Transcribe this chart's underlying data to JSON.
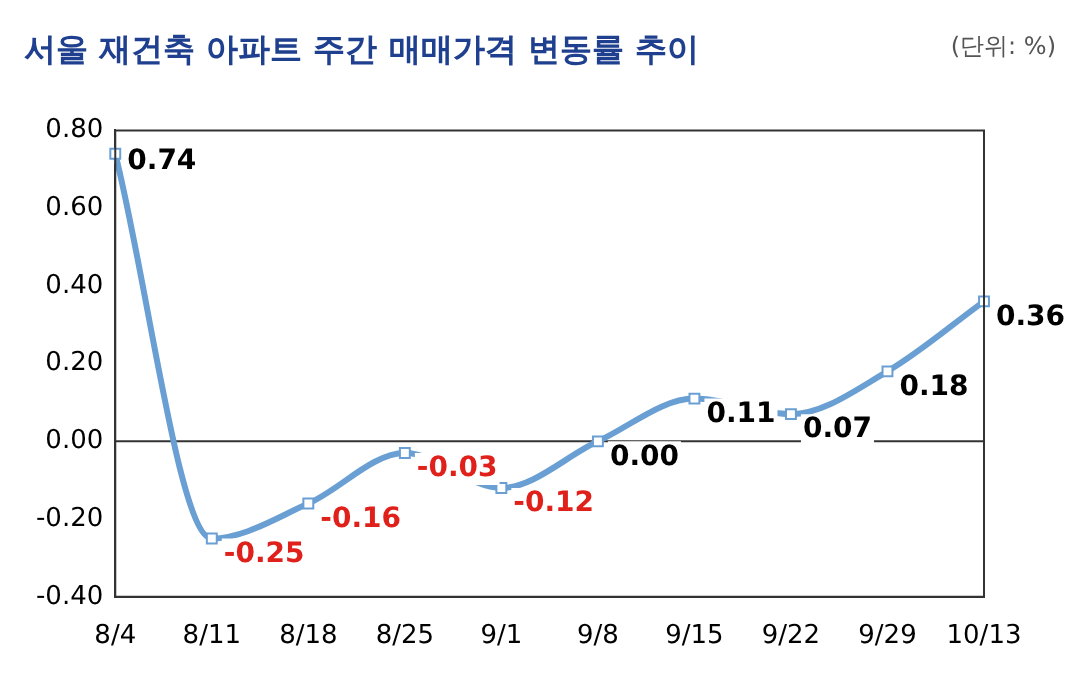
{
  "chart_data": {
    "type": "line",
    "title": "서울 재건축 아파트 주간 매매가격 변동률 추이",
    "annotations": [
      "(단위: %)"
    ],
    "categories": [
      "8/4",
      "8/11",
      "8/18",
      "8/25",
      "9/1",
      "9/8",
      "9/15",
      "9/22",
      "9/29",
      "10/13"
    ],
    "series": [
      {
        "color": "#6a9fd4",
        "values": [
          0.74,
          -0.25,
          -0.16,
          -0.03,
          -0.12,
          0.0,
          0.11,
          0.07,
          0.18,
          0.36
        ],
        "value_labels": [
          "0.74",
          "-0.25",
          "-0.16",
          "-0.03",
          "-0.12",
          "0.00",
          "0.11",
          "0.07",
          "0.18",
          "0.36"
        ]
      }
    ],
    "ylim": [
      -0.4,
      0.8
    ],
    "yticks": [
      {
        "value": -0.4,
        "label": "-0.40"
      },
      {
        "value": -0.2,
        "label": "-0.20"
      },
      {
        "value": 0,
        "label": "0.00"
      },
      {
        "value": 0.2,
        "label": "0.20"
      },
      {
        "value": 0.4,
        "label": "0.40"
      },
      {
        "value": 0.6,
        "label": "0.60"
      },
      {
        "value": 0.8,
        "label": "0.80"
      }
    ],
    "ref_lines": [
      {
        "axis": "y",
        "value": 0,
        "color": "#333333"
      }
    ],
    "marker": "square",
    "grid": false,
    "legend": false
  }
}
